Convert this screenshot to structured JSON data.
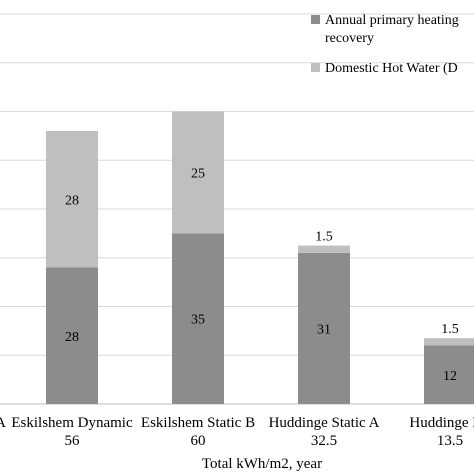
{
  "chart_data": {
    "type": "bar",
    "stacked": true,
    "categories": [
      [
        "A",
        ""
      ],
      [
        "Eskilshem Dynamic",
        "56"
      ],
      [
        "Eskilshem Static B",
        "60"
      ],
      [
        "Huddinge Static A",
        "32.5"
      ],
      [
        "Huddinge Dy",
        "13.5"
      ]
    ],
    "series": [
      {
        "name": "Annual primary heating recovery",
        "color": "#8c8c8c",
        "values": [
          null,
          28,
          35,
          31,
          12
        ]
      },
      {
        "name": "Domestic Hot Water (D",
        "color": "#bfbfbf",
        "values": [
          null,
          28,
          25,
          1.5,
          1.5
        ]
      }
    ],
    "legend_lines": [
      [
        "Annual primary heating",
        "recovery"
      ],
      [
        "Domestic Hot Water (D"
      ]
    ],
    "legend_position": "top-right",
    "xlabel": "Total kWh/m2, year",
    "ylim": [
      0,
      80
    ],
    "grid": true,
    "gridline_step": 10
  }
}
